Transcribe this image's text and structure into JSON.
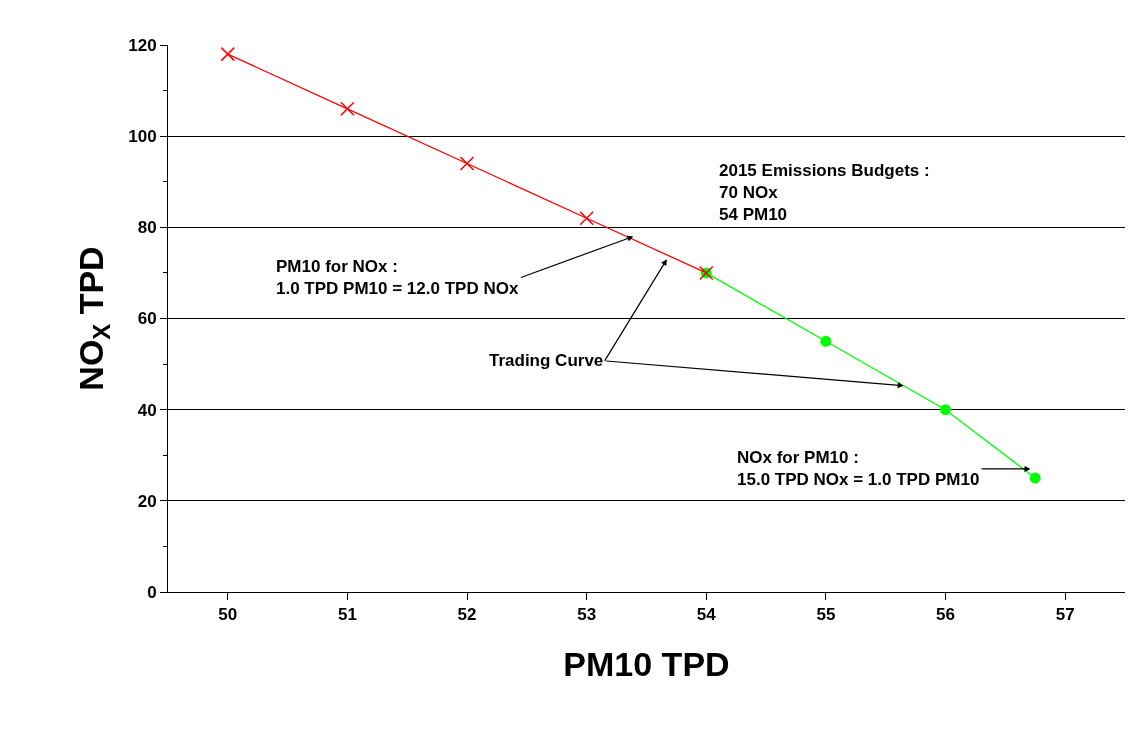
{
  "chart_data": {
    "type": "line",
    "xlabel": "PM10 TPD",
    "ylabel": "NO$_{X}$ TPD",
    "xlim": [
      49.5,
      57.5
    ],
    "xticks": [
      50,
      51,
      52,
      53,
      54,
      55,
      56,
      57
    ],
    "ylim": [
      0,
      120
    ],
    "yticks": [
      0,
      20,
      40,
      60,
      80,
      100,
      120
    ],
    "grid": "y",
    "series": [
      {
        "color": "#ff0000",
        "marker": "cross",
        "x": [
          50,
          51,
          52,
          53,
          54
        ],
        "values": [
          118,
          106,
          94,
          82,
          70
        ]
      },
      {
        "color": "#00ff00",
        "marker": "circle",
        "x": [
          54,
          55,
          56,
          56.75
        ],
        "values": [
          70,
          55,
          40,
          25
        ]
      }
    ],
    "annotations": [
      "2015 Emissions Budgets :\n70 NOx\n54 PM10",
      {
        "text": "PM10 for NOx :\n1.0 TPD PM10 = 12.0 TPD NOx",
        "x": 53.39,
        "y": 78
      },
      {
        "text": "Trading Curve",
        "x": 53.67,
        "y": 73
      },
      {
        "text": "NOx for PM10 :\n15.0 TPD NOx = 1.0 TPD PM10",
        "x": 56.71,
        "y": 27
      }
    ]
  }
}
